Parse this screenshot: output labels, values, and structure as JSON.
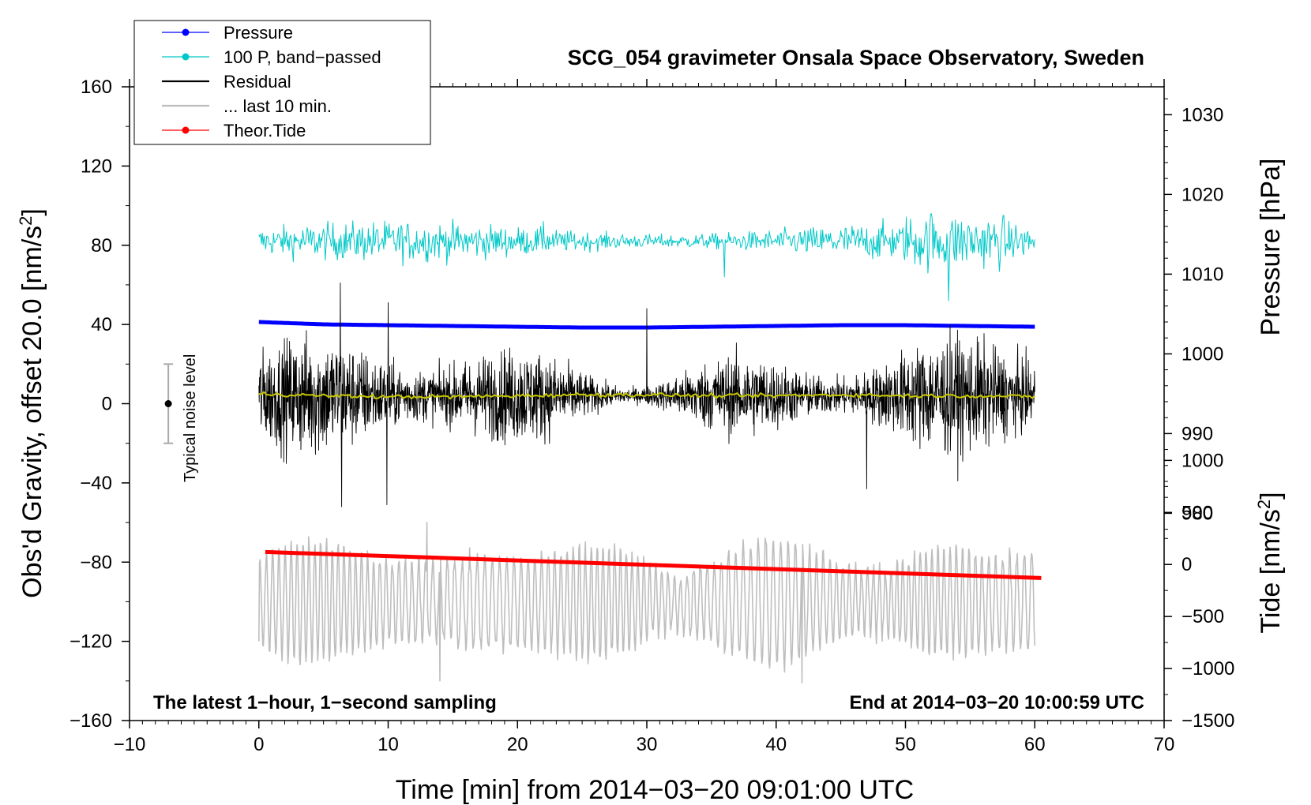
{
  "chart_data": {
    "type": "line",
    "title": "SCG_054 gravimeter Onsala Space Observatory, Sweden",
    "xlabel": "Time [min] from 2014−03−20 09:01:00 UTC",
    "ylabel_left_main": "Obs'd Gravity, offset 20.0 [nm/s",
    "ylabel_left_sup": "2",
    "ylabel_left_end": "]",
    "ylabel_right_pressure": "Pressure [hPa]",
    "ylabel_right_tide_main": "Tide [nm/s",
    "ylabel_right_tide_sup": "2",
    "ylabel_right_tide_end": "]",
    "xlim": [
      -10,
      70
    ],
    "ylim": [
      -160,
      160
    ],
    "pressure_ylim": [
      954,
      1033.5
    ],
    "tide_ylim": [
      -1500,
      4590
    ],
    "xticks": [
      -10,
      0,
      10,
      20,
      30,
      40,
      50,
      60,
      70
    ],
    "xtick_labels": [
      "−10",
      "0",
      "10",
      "20",
      "30",
      "40",
      "50",
      "60",
      "70"
    ],
    "yticks": [
      -160,
      -120,
      -80,
      -40,
      0,
      40,
      80,
      120,
      160
    ],
    "ytick_labels": [
      "−160",
      "−120",
      "−80",
      "−40",
      "0",
      "40",
      "80",
      "120",
      "160"
    ],
    "pressure_ticks": [
      980,
      990,
      1000,
      1010,
      1020,
      1030
    ],
    "pressure_tick_labels": [
      "980",
      "990",
      "1000",
      "1010",
      "1020",
      "1030"
    ],
    "tide_ticks": [
      -1500,
      -1000,
      -500,
      0,
      500,
      1000
    ],
    "tide_tick_labels": [
      "−1500",
      "−1000",
      "−500",
      "0",
      "500",
      "1000"
    ],
    "legend": [
      {
        "label": "Pressure",
        "color": "#0000ff",
        "marker": true
      },
      {
        "label": "100 P, band−passed",
        "color": "#00c8c8",
        "marker": true
      },
      {
        "label": "Residual",
        "color": "#000000",
        "marker": false
      },
      {
        "label": "... last 10 min.",
        "color": "#bebebe",
        "marker": false
      },
      {
        "label": "Theor.Tide",
        "color": "#ff0000",
        "marker": true
      }
    ],
    "annotations": {
      "bottom_left": "The latest 1−hour, 1−second sampling",
      "bottom_right": "End at 2014−03−20 10:00:59 UTC",
      "noise_label": "Typical noise level"
    },
    "noise_bar": {
      "x": -7,
      "y": 0,
      "half_range": 20
    },
    "series": [
      {
        "name": "Pressure",
        "axis": "pressure",
        "color": "#0000ff",
        "x_range": [
          0,
          60
        ],
        "values": [
          1004.0,
          1003.7,
          1003.6,
          1003.5,
          1003.4,
          1003.3,
          1003.3,
          1003.4,
          1003.5,
          1003.6,
          1003.6,
          1003.5,
          1003.4
        ]
      },
      {
        "name": "100 P, band-passed",
        "axis": "gravity",
        "color": "#00c8c8",
        "x_range": [
          0,
          60
        ],
        "center": 82,
        "typical_amplitude": 6,
        "extremes": [
          92,
          64,
          96,
          52
        ]
      },
      {
        "name": "Residual",
        "axis": "gravity",
        "color": "#000000",
        "x_range": [
          0,
          60
        ],
        "center": 4,
        "typical_amplitude": 20,
        "spikes": [
          [
            6.3,
            61
          ],
          [
            6.4,
            -52
          ],
          [
            10.0,
            51
          ],
          [
            9.9,
            -51
          ],
          [
            47.0,
            -43
          ],
          [
            30.0,
            48
          ]
        ]
      },
      {
        "name": "Residual smoothed",
        "axis": "gravity",
        "color": "#c8c800",
        "x_range": [
          0,
          60
        ],
        "values": [
          5,
          4,
          3.5,
          3.5,
          4,
          4.5,
          4.5,
          4,
          4,
          4.5,
          4,
          4,
          3.5
        ]
      },
      {
        "name": "Theor.Tide",
        "axis": "tide",
        "color": "#ff0000",
        "x": [
          0.5,
          60.5
        ],
        "values": [
          120,
          -130
        ]
      },
      {
        "name": "... last 10 min.",
        "axis": "gravity",
        "color": "#bebebe",
        "x_range": [
          0,
          60
        ],
        "center": -100,
        "typical_amplitude": 22,
        "extremes": [
          -60,
          -140,
          -59,
          -141
        ]
      }
    ]
  }
}
